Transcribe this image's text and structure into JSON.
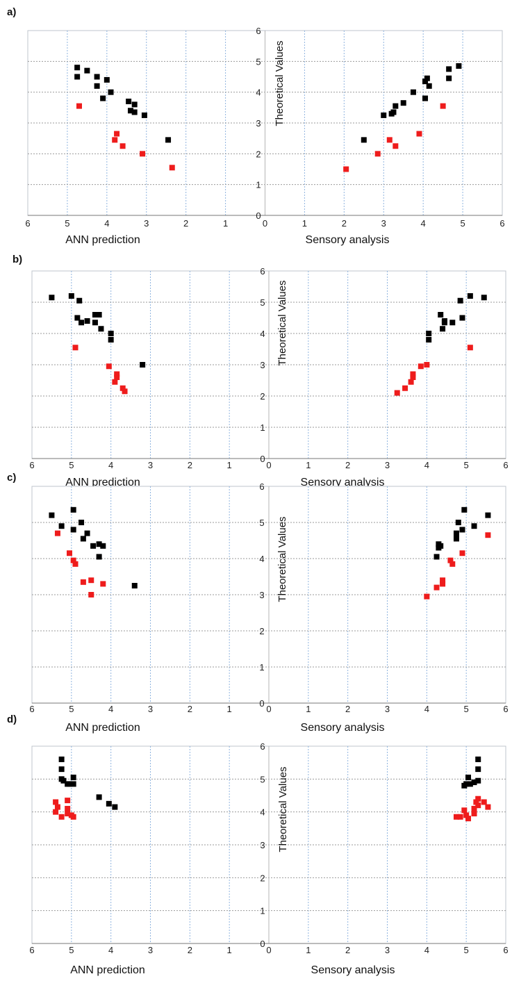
{
  "chart_data": [
    {
      "type": "scatter",
      "panel_label": "a)",
      "ylabel": "Theoretical Values",
      "left_xlabel": "ANN prediction",
      "right_xlabel": "Sensory analysis",
      "x_ticks": [
        "6",
        "5",
        "4",
        "3",
        "2",
        "1",
        "0",
        "1",
        "2",
        "3",
        "4",
        "5",
        "6"
      ],
      "y_ticks": [
        "0",
        "1",
        "2",
        "3",
        "4",
        "5",
        "6"
      ],
      "xlim": [
        0,
        6
      ],
      "ylim": [
        0,
        6
      ],
      "grid": true,
      "series": [
        {
          "color": "#000000",
          "left": [
            [
              4.75,
              4.8
            ],
            [
              4.75,
              4.5
            ],
            [
              4.5,
              4.7
            ],
            [
              4.25,
              4.5
            ],
            [
              4.25,
              4.2
            ],
            [
              4.0,
              4.4
            ],
            [
              3.9,
              4.0
            ],
            [
              4.1,
              3.8
            ],
            [
              3.45,
              3.7
            ],
            [
              3.4,
              3.4
            ],
            [
              3.3,
              3.6
            ],
            [
              3.3,
              3.35
            ],
            [
              3.05,
              3.25
            ],
            [
              2.45,
              2.45
            ]
          ],
          "right": [
            [
              4.9,
              4.85
            ],
            [
              4.65,
              4.75
            ],
            [
              4.65,
              4.45
            ],
            [
              4.1,
              4.45
            ],
            [
              4.05,
              4.35
            ],
            [
              4.15,
              4.2
            ],
            [
              3.75,
              4.0
            ],
            [
              4.05,
              3.8
            ],
            [
              3.5,
              3.65
            ],
            [
              3.3,
              3.55
            ],
            [
              3.25,
              3.35
            ],
            [
              3.2,
              3.3
            ],
            [
              3.0,
              3.25
            ],
            [
              2.5,
              2.45
            ]
          ]
        },
        {
          "color": "#ee1c1c",
          "left": [
            [
              4.7,
              3.55
            ],
            [
              3.75,
              2.65
            ],
            [
              3.8,
              2.45
            ],
            [
              3.6,
              2.25
            ],
            [
              3.1,
              2.0
            ],
            [
              2.35,
              1.55
            ]
          ],
          "right": [
            [
              4.5,
              3.55
            ],
            [
              3.9,
              2.65
            ],
            [
              3.15,
              2.45
            ],
            [
              3.3,
              2.25
            ],
            [
              2.85,
              2.0
            ],
            [
              2.05,
              1.5
            ]
          ]
        }
      ]
    },
    {
      "type": "scatter",
      "panel_label": "b)",
      "ylabel": "Theoretical Values",
      "left_xlabel": "ANN prediction",
      "right_xlabel": "Sensory analysis",
      "x_ticks": [
        "6",
        "5",
        "4",
        "3",
        "2",
        "1",
        "0",
        "1",
        "2",
        "3",
        "4",
        "5",
        "6"
      ],
      "y_ticks": [
        "0",
        "1",
        "2",
        "3",
        "4",
        "5",
        "6"
      ],
      "xlim": [
        0,
        6
      ],
      "ylim": [
        0,
        6
      ],
      "grid": true,
      "series": [
        {
          "color": "#000000",
          "left": [
            [
              5.5,
              5.15
            ],
            [
              5.0,
              5.2
            ],
            [
              4.8,
              5.05
            ],
            [
              4.85,
              4.5
            ],
            [
              4.75,
              4.35
            ],
            [
              4.6,
              4.4
            ],
            [
              4.4,
              4.6
            ],
            [
              4.3,
              4.6
            ],
            [
              4.4,
              4.35
            ],
            [
              4.25,
              4.15
            ],
            [
              4.0,
              4.0
            ],
            [
              4.0,
              3.8
            ],
            [
              3.2,
              3.0
            ]
          ],
          "right": [
            [
              5.45,
              5.15
            ],
            [
              5.1,
              5.2
            ],
            [
              4.85,
              5.05
            ],
            [
              4.9,
              4.5
            ],
            [
              4.65,
              4.35
            ],
            [
              4.45,
              4.4
            ],
            [
              4.35,
              4.6
            ],
            [
              4.45,
              4.35
            ],
            [
              4.4,
              4.15
            ],
            [
              4.05,
              4.0
            ],
            [
              4.05,
              3.8
            ]
          ]
        },
        {
          "color": "#ee1c1c",
          "left": [
            [
              4.9,
              3.55
            ],
            [
              4.05,
              2.95
            ],
            [
              3.85,
              2.7
            ],
            [
              3.85,
              2.6
            ],
            [
              3.9,
              2.45
            ],
            [
              3.7,
              2.25
            ],
            [
              3.65,
              2.15
            ]
          ],
          "right": [
            [
              5.1,
              3.55
            ],
            [
              4.0,
              3.0
            ],
            [
              3.85,
              2.95
            ],
            [
              3.65,
              2.7
            ],
            [
              3.65,
              2.6
            ],
            [
              3.6,
              2.45
            ],
            [
              3.45,
              2.25
            ],
            [
              3.25,
              2.1
            ]
          ]
        }
      ]
    },
    {
      "type": "scatter",
      "panel_label": "c)",
      "ylabel": "Theoretical Values",
      "left_xlabel": "ANN prediction",
      "right_xlabel": "Sensory analysis",
      "x_ticks": [
        "6",
        "5",
        "4",
        "3",
        "2",
        "1",
        "0",
        "1",
        "2",
        "3",
        "4",
        "5",
        "6"
      ],
      "y_ticks": [
        "0",
        "1",
        "2",
        "3",
        "4",
        "5",
        "6"
      ],
      "xlim": [
        0,
        6
      ],
      "ylim": [
        0,
        6
      ],
      "grid": true,
      "series": [
        {
          "color": "#000000",
          "left": [
            [
              5.5,
              5.2
            ],
            [
              5.25,
              4.9
            ],
            [
              4.95,
              5.35
            ],
            [
              4.95,
              4.8
            ],
            [
              4.75,
              5.0
            ],
            [
              4.7,
              4.55
            ],
            [
              4.6,
              4.7
            ],
            [
              4.45,
              4.35
            ],
            [
              4.3,
              4.4
            ],
            [
              4.2,
              4.35
            ],
            [
              4.3,
              4.05
            ],
            [
              3.4,
              3.25
            ]
          ],
          "right": [
            [
              5.55,
              5.2
            ],
            [
              5.2,
              4.9
            ],
            [
              4.95,
              5.35
            ],
            [
              4.9,
              4.8
            ],
            [
              4.8,
              5.0
            ],
            [
              4.75,
              4.7
            ],
            [
              4.75,
              4.55
            ],
            [
              4.35,
              4.35
            ],
            [
              4.3,
              4.4
            ],
            [
              4.3,
              4.3
            ],
            [
              4.25,
              4.05
            ]
          ]
        },
        {
          "color": "#ee1c1c",
          "left": [
            [
              5.35,
              4.7
            ],
            [
              5.05,
              4.15
            ],
            [
              4.95,
              3.95
            ],
            [
              4.9,
              3.85
            ],
            [
              4.7,
              3.35
            ],
            [
              4.5,
              3.4
            ],
            [
              4.2,
              3.3
            ],
            [
              4.5,
              3.0
            ]
          ],
          "right": [
            [
              5.55,
              4.65
            ],
            [
              4.9,
              4.15
            ],
            [
              4.6,
              3.95
            ],
            [
              4.65,
              3.85
            ],
            [
              4.4,
              3.4
            ],
            [
              4.4,
              3.3
            ],
            [
              4.25,
              3.2
            ],
            [
              4.0,
              2.95
            ]
          ]
        }
      ]
    },
    {
      "type": "scatter",
      "panel_label": "d)",
      "ylabel": "Theoretical Values",
      "left_xlabel": "ANN prediction",
      "right_xlabel": "Sensory analysis",
      "x_ticks": [
        "6",
        "5",
        "4",
        "3",
        "2",
        "1",
        "0",
        "1",
        "2",
        "3",
        "4",
        "5",
        "6"
      ],
      "y_ticks": [
        "0",
        "1",
        "2",
        "3",
        "4",
        "5",
        "6"
      ],
      "xlim": [
        0,
        6
      ],
      "ylim": [
        0,
        6
      ],
      "grid": true,
      "series": [
        {
          "color": "#000000",
          "left": [
            [
              5.25,
              5.6
            ],
            [
              5.25,
              5.3
            ],
            [
              5.2,
              4.95
            ],
            [
              5.25,
              5.0
            ],
            [
              5.1,
              4.85
            ],
            [
              5.05,
              4.85
            ],
            [
              4.95,
              5.05
            ],
            [
              4.95,
              4.85
            ],
            [
              4.3,
              4.45
            ],
            [
              4.05,
              4.25
            ],
            [
              3.9,
              4.15
            ]
          ],
          "right": [
            [
              5.3,
              5.6
            ],
            [
              5.3,
              5.3
            ],
            [
              5.3,
              4.95
            ],
            [
              5.2,
              4.9
            ],
            [
              5.1,
              4.85
            ],
            [
              5.05,
              5.05
            ],
            [
              5.0,
              4.85
            ],
            [
              4.95,
              4.8
            ]
          ]
        },
        {
          "color": "#ee1c1c",
          "left": [
            [
              5.4,
              4.3
            ],
            [
              5.35,
              4.15
            ],
            [
              5.4,
              4.0
            ],
            [
              5.25,
              3.85
            ],
            [
              5.1,
              4.35
            ],
            [
              5.1,
              4.1
            ],
            [
              5.1,
              3.95
            ],
            [
              5.0,
              3.9
            ],
            [
              4.95,
              3.85
            ]
          ],
          "right": [
            [
              5.3,
              4.4
            ],
            [
              5.25,
              4.3
            ],
            [
              5.3,
              4.2
            ],
            [
              5.45,
              4.3
            ],
            [
              5.55,
              4.15
            ],
            [
              5.2,
              4.1
            ],
            [
              5.2,
              3.95
            ],
            [
              4.95,
              4.05
            ],
            [
              5.0,
              3.9
            ],
            [
              4.85,
              3.85
            ],
            [
              4.75,
              3.85
            ],
            [
              5.05,
              3.8
            ]
          ]
        }
      ]
    }
  ]
}
